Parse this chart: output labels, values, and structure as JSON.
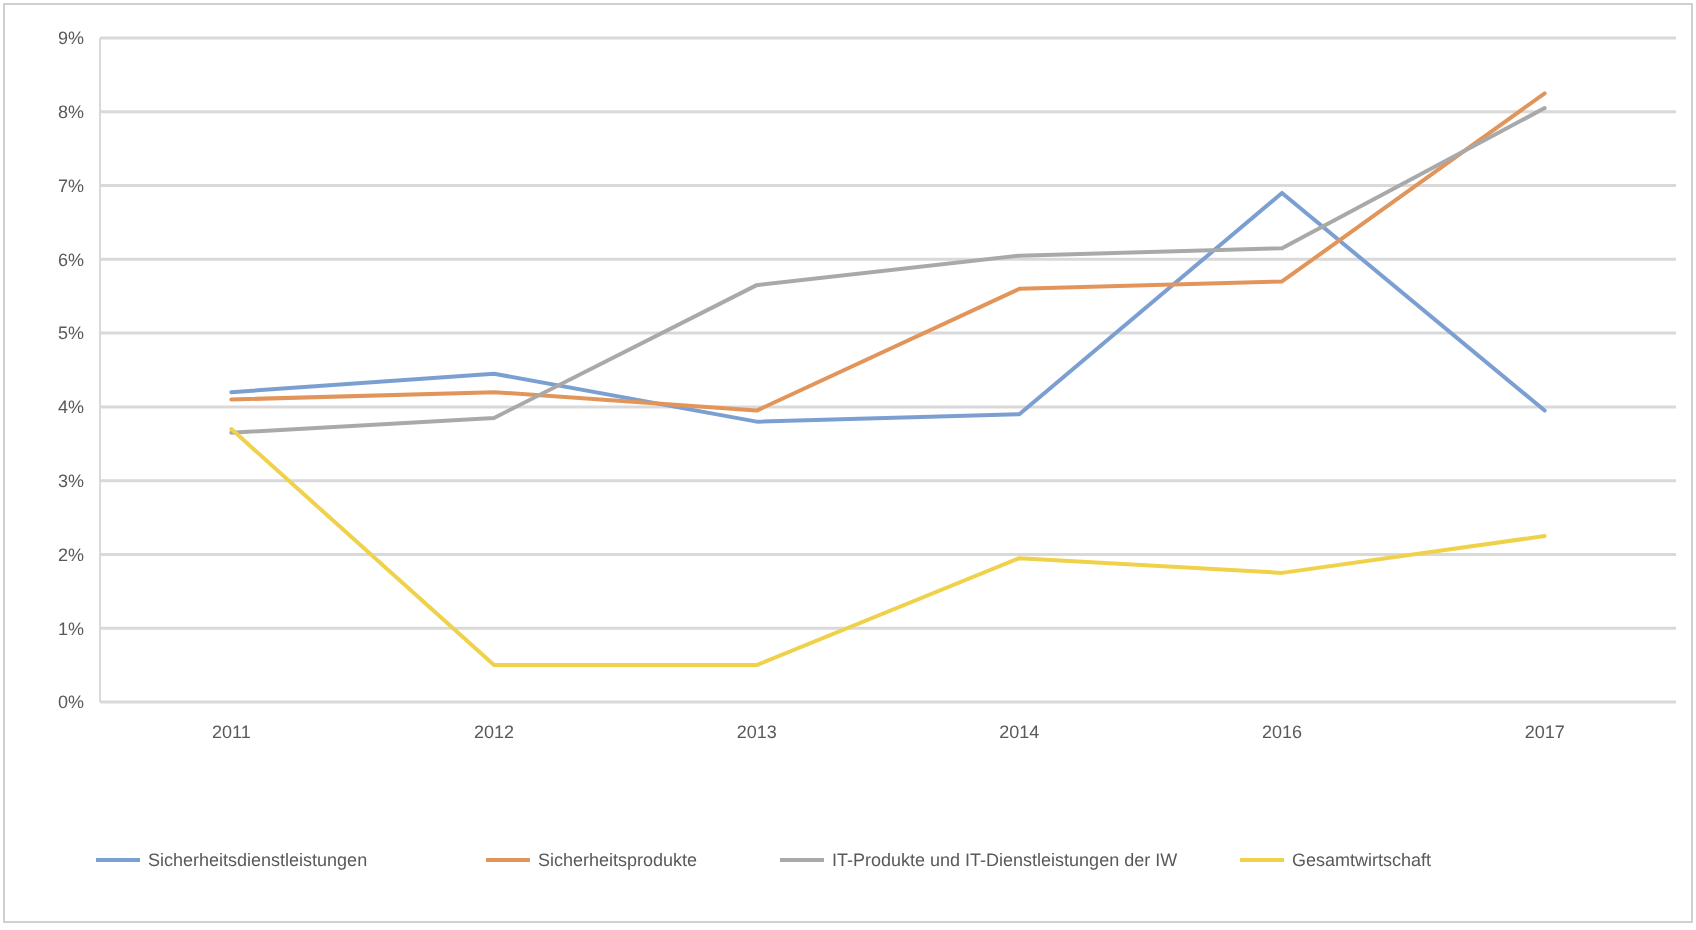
{
  "chart_data": {
    "type": "line",
    "categories": [
      "2011",
      "2012",
      "2013",
      "2014",
      "2016",
      "2017"
    ],
    "series": [
      {
        "name": "Sicherheitsdienstleistungen",
        "color": "#7c9fd2",
        "values": [
          4.2,
          4.45,
          3.8,
          3.9,
          6.9,
          3.95
        ]
      },
      {
        "name": "Sicherheitsprodukte",
        "color": "#e2955a",
        "values": [
          4.1,
          4.2,
          3.95,
          5.6,
          5.7,
          8.25
        ]
      },
      {
        "name": "IT-Produkte und IT-Dienstleistungen der IW",
        "color": "#a9a9a9",
        "values": [
          3.65,
          3.85,
          5.65,
          6.05,
          6.15,
          8.05
        ]
      },
      {
        "name": "Gesamtwirtschaft",
        "color": "#efd24a",
        "values": [
          3.7,
          0.5,
          0.5,
          1.95,
          1.75,
          2.25
        ]
      }
    ],
    "ylim": [
      0,
      9
    ],
    "yticks": [
      {
        "value": 0,
        "label": "0%"
      },
      {
        "value": 1,
        "label": "1%"
      },
      {
        "value": 2,
        "label": "2%"
      },
      {
        "value": 3,
        "label": "3%"
      },
      {
        "value": 4,
        "label": "4%"
      },
      {
        "value": 5,
        "label": "5%"
      },
      {
        "value": 6,
        "label": "6%"
      },
      {
        "value": 7,
        "label": "7%"
      },
      {
        "value": 8,
        "label": "8%"
      },
      {
        "value": 9,
        "label": "9%"
      }
    ],
    "grid": "y",
    "legend": "bottom",
    "marker": "none",
    "line_style": "solid"
  }
}
